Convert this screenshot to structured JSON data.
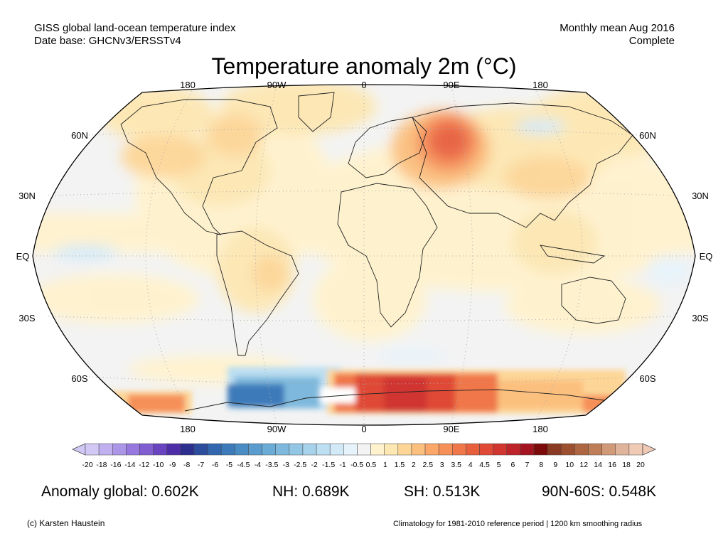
{
  "header": {
    "line1_left": "GISS global land-ocean temperature index",
    "line2_left": "Date base: GHCNv3/ERSSTv4",
    "line1_right": "Monthly mean Aug 2016",
    "line2_right": "Complete"
  },
  "title": "Temperature anomaly 2m (°C)",
  "map": {
    "projection": "Robinson",
    "lon_labels": [
      "180",
      "90W",
      "0",
      "90E",
      "180"
    ],
    "lat_labels": [
      "60N",
      "30N",
      "EQ",
      "30S",
      "60S"
    ]
  },
  "colorbar": {
    "ticks": [
      "-20",
      "-18",
      "-16",
      "-14",
      "-12",
      "-10",
      "-9",
      "-8",
      "-7",
      "-6",
      "-5",
      "-4.5",
      "-4",
      "-3.5",
      "-3",
      "-2.5",
      "-2",
      "-1.5",
      "-1",
      "-0.5",
      "0.5",
      "1",
      "1.5",
      "2",
      "2.5",
      "3",
      "3.5",
      "4",
      "4.5",
      "5",
      "6",
      "7",
      "8",
      "9",
      "10",
      "12",
      "14",
      "16",
      "18",
      "20"
    ],
    "colors": [
      "#d2c8f5",
      "#c0b0f0",
      "#ab96e8",
      "#9678de",
      "#805ed2",
      "#6a44c0",
      "#4e2ea8",
      "#2d2f8e",
      "#2c4d9e",
      "#3266ae",
      "#3c7aba",
      "#4a8cc4",
      "#5a9ccd",
      "#6aacd5",
      "#7eb9dd",
      "#92c6e4",
      "#a6d2eb",
      "#bcdff2",
      "#d2eaf8",
      "#e6f3fb",
      "#f3f3f3",
      "#fff2cd",
      "#fde7b2",
      "#fdd697",
      "#fcc07e",
      "#faa769",
      "#f68f58",
      "#f0774a",
      "#e85f3e",
      "#df4936",
      "#d03530",
      "#bd2328",
      "#a41420",
      "#7c0a0a",
      "#8a3a22",
      "#9c5030",
      "#ae6642",
      "#bf7e58",
      "#d09a78",
      "#e0b49a",
      "#f0cab4"
    ]
  },
  "stats": {
    "global": "Anomaly global: 0.602K",
    "nh": "NH: 0.689K",
    "sh": "SH: 0.513K",
    "polar": "90N-60S: 0.548K"
  },
  "footer": {
    "copyright": "(c) Karsten Haustein",
    "note": "Climatology for 1981-2010 reference period | 1200 km smoothing radius"
  }
}
